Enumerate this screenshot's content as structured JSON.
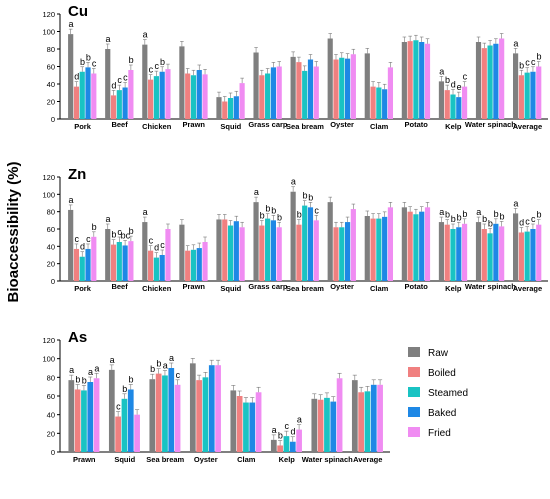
{
  "ylabel": "Bioaccessibility (%)",
  "treatments": [
    "Raw",
    "Boiled",
    "Steamed",
    "Baked",
    "Fried"
  ],
  "colors": {
    "Raw": "#7f7f7f",
    "Boiled": "#f08080",
    "Steamed": "#19c3c3",
    "Baked": "#1e88e5",
    "Fried": "#f08cf2"
  },
  "chart_data": [
    {
      "type": "bar",
      "title": "Cu",
      "ylim": [
        0,
        120
      ],
      "yticks": [
        0,
        20,
        40,
        60,
        80,
        100,
        120
      ],
      "categories": [
        "Pork",
        "Beef",
        "Chicken",
        "Prawn",
        "Squid",
        "Grass carp",
        "Sea bream",
        "Oyster",
        "Clam",
        "Potato",
        "Kelp",
        "Water spinach",
        "Average"
      ],
      "series": [
        {
          "name": "Raw",
          "values": [
            97,
            80,
            85,
            83,
            25,
            76,
            71,
            92,
            75,
            88,
            43,
            88,
            75
          ]
        },
        {
          "name": "Boiled",
          "values": [
            37,
            27,
            45,
            52,
            20,
            50,
            65,
            68,
            37,
            89,
            33,
            81,
            50
          ]
        },
        {
          "name": "Steamed",
          "values": [
            54,
            33,
            49,
            50,
            24,
            52,
            55,
            70,
            36,
            90,
            28,
            84,
            53
          ]
        },
        {
          "name": "Baked",
          "values": [
            59,
            36,
            54,
            56,
            26,
            59,
            68,
            69,
            34,
            88,
            25,
            86,
            54
          ]
        },
        {
          "name": "Fried",
          "values": [
            52,
            56,
            57,
            51,
            41,
            60,
            60,
            74,
            59,
            86,
            37,
            92,
            60
          ]
        }
      ],
      "letters": [
        [
          "a",
          "d",
          "b",
          "b",
          "c"
        ],
        [
          "a",
          "d",
          "c",
          "c",
          "b"
        ],
        [
          "a",
          "c",
          "c",
          "b",
          ""
        ],
        [
          "",
          "",
          "",
          "",
          ""
        ],
        [
          "",
          "",
          "",
          "",
          ""
        ],
        [
          "",
          "",
          "",
          "",
          ""
        ],
        [
          "",
          "",
          "",
          "",
          ""
        ],
        [
          "",
          "",
          "",
          "",
          ""
        ],
        [
          "",
          "",
          "",
          "",
          ""
        ],
        [
          "",
          "",
          "",
          "",
          ""
        ],
        [
          "a",
          "b",
          "d",
          "e",
          "c"
        ],
        [
          "",
          "",
          "",
          "",
          ""
        ],
        [
          "a",
          "b",
          "c",
          "c",
          "b"
        ]
      ]
    },
    {
      "type": "bar",
      "title": "Zn",
      "ylim": [
        0,
        120
      ],
      "yticks": [
        0,
        20,
        40,
        60,
        80,
        100,
        120
      ],
      "categories": [
        "Pork",
        "Beef",
        "Chicken",
        "Prawn",
        "Squid",
        "Grass carp",
        "Sea bream",
        "Oyster",
        "Clam",
        "Potato",
        "Kelp",
        "Water spinach",
        "Average"
      ],
      "series": [
        {
          "name": "Raw",
          "values": [
            82,
            60,
            68,
            65,
            71,
            91,
            103,
            91,
            75,
            85,
            68,
            68,
            78
          ]
        },
        {
          "name": "Boiled",
          "values": [
            37,
            42,
            35,
            35,
            71,
            64,
            65,
            62,
            72,
            80,
            65,
            60,
            56
          ]
        },
        {
          "name": "Steamed",
          "values": [
            28,
            45,
            27,
            36,
            64,
            72,
            87,
            62,
            72,
            77,
            60,
            55,
            57
          ]
        },
        {
          "name": "Baked",
          "values": [
            37,
            41,
            30,
            38,
            69,
            70,
            85,
            68,
            74,
            80,
            62,
            66,
            60
          ]
        },
        {
          "name": "Fried",
          "values": [
            51,
            46,
            60,
            45,
            62,
            62,
            70,
            83,
            85,
            85,
            66,
            63,
            65
          ]
        }
      ],
      "letters": [
        [
          "a",
          "c",
          "d",
          "c",
          "b"
        ],
        [
          "a",
          "b",
          "c",
          "bc",
          "b"
        ],
        [
          "a",
          "c",
          "d",
          "c",
          ""
        ],
        [
          "",
          "",
          "",
          "",
          ""
        ],
        [
          "",
          "",
          "",
          "",
          ""
        ],
        [
          "a",
          "b",
          "b",
          "b",
          "b"
        ],
        [
          "a",
          "b",
          "b",
          "b",
          "c"
        ],
        [
          "",
          "",
          "",
          "",
          ""
        ],
        [
          "",
          "",
          "",
          "",
          ""
        ],
        [
          "",
          "",
          "",
          "",
          ""
        ],
        [
          "a",
          "b",
          "b",
          "b",
          "b"
        ],
        [
          "a",
          "b",
          "b",
          "b",
          "b"
        ],
        [
          "a",
          "d",
          "c",
          "c",
          "b"
        ]
      ]
    },
    {
      "type": "bar",
      "title": "As",
      "ylim": [
        0,
        120
      ],
      "yticks": [
        0,
        20,
        40,
        60,
        80,
        100,
        120
      ],
      "categories": [
        "Prawn",
        "Squid",
        "Sea bream",
        "Oyster",
        "Clam",
        "Kelp",
        "Water spinach",
        "Average"
      ],
      "series": [
        {
          "name": "Raw",
          "values": [
            77,
            88,
            78,
            95,
            66,
            13,
            57,
            77
          ]
        },
        {
          "name": "Boiled",
          "values": [
            67,
            38,
            84,
            77,
            60,
            7,
            56,
            64
          ]
        },
        {
          "name": "Steamed",
          "values": [
            66,
            57,
            82,
            80,
            53,
            17,
            58,
            65
          ]
        },
        {
          "name": "Baked",
          "values": [
            75,
            67,
            90,
            93,
            53,
            11,
            54,
            72
          ]
        },
        {
          "name": "Fried",
          "values": [
            79,
            40,
            72,
            93,
            64,
            24,
            79,
            72
          ]
        }
      ],
      "letters": [
        [
          "a",
          "b",
          "b",
          "a",
          "a"
        ],
        [
          "a",
          "c",
          "b",
          "b",
          ""
        ],
        [
          "b",
          "b",
          "a",
          "a",
          "c"
        ],
        [
          "",
          "",
          "",
          "",
          ""
        ],
        [
          "",
          "",
          "",
          "",
          ""
        ],
        [
          "a",
          "b",
          "c",
          "d",
          "a"
        ],
        [
          "",
          "",
          "",
          "",
          ""
        ],
        [
          "",
          "",
          "",
          "",
          ""
        ]
      ]
    }
  ]
}
